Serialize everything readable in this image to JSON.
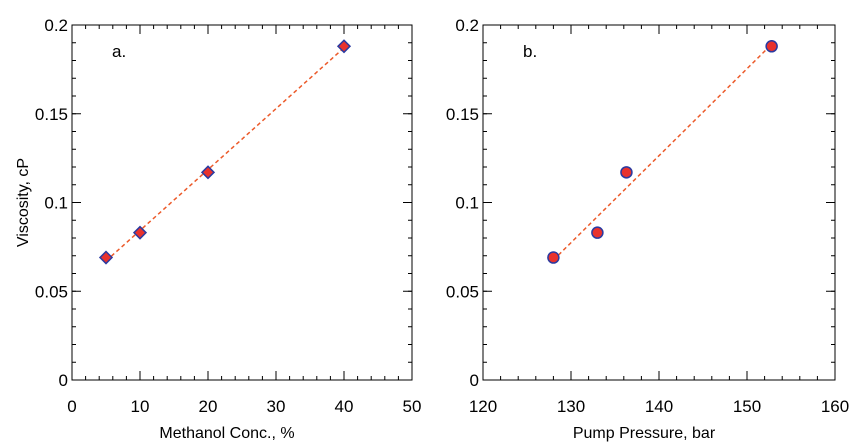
{
  "chart_data": [
    {
      "type": "scatter",
      "panel_label": "a.",
      "xlabel": "Methanol Conc., %",
      "ylabel": "Viscosity, cP",
      "xlim": [
        0,
        50
      ],
      "ylim": [
        0,
        0.2
      ],
      "xticks": [
        "0",
        "10",
        "20",
        "30",
        "40",
        "50"
      ],
      "yticks": [
        "0",
        "0.05",
        "0.1",
        "0.15",
        "0.2"
      ],
      "marker": "diamond",
      "marker_color": "#e8322d",
      "marker_edge_color": "#2b3aa0",
      "trendline_color": "#ec5a2a",
      "trendline": "dashed linear fit",
      "grid": false,
      "points": [
        {
          "x": 5,
          "y": 0.069
        },
        {
          "x": 10,
          "y": 0.083
        },
        {
          "x": 20,
          "y": 0.117
        },
        {
          "x": 40,
          "y": 0.188
        }
      ]
    },
    {
      "type": "scatter",
      "panel_label": "b.",
      "xlabel": "Pump Pressure, bar",
      "ylabel": "",
      "xlim": [
        120,
        160
      ],
      "ylim": [
        0,
        0.2
      ],
      "xticks": [
        "120",
        "130",
        "140",
        "150",
        "160"
      ],
      "yticks": [
        "0",
        "0.05",
        "0.1",
        "0.15",
        "0.2"
      ],
      "marker": "circle",
      "marker_color": "#e8322d",
      "marker_edge_color": "#2b3aa0",
      "trendline_color": "#ec5a2a",
      "trendline": "dashed linear fit",
      "grid": false,
      "points": [
        {
          "x": 128,
          "y": 0.069
        },
        {
          "x": 133,
          "y": 0.083
        },
        {
          "x": 136.3,
          "y": 0.117
        },
        {
          "x": 152.8,
          "y": 0.188
        }
      ]
    }
  ]
}
